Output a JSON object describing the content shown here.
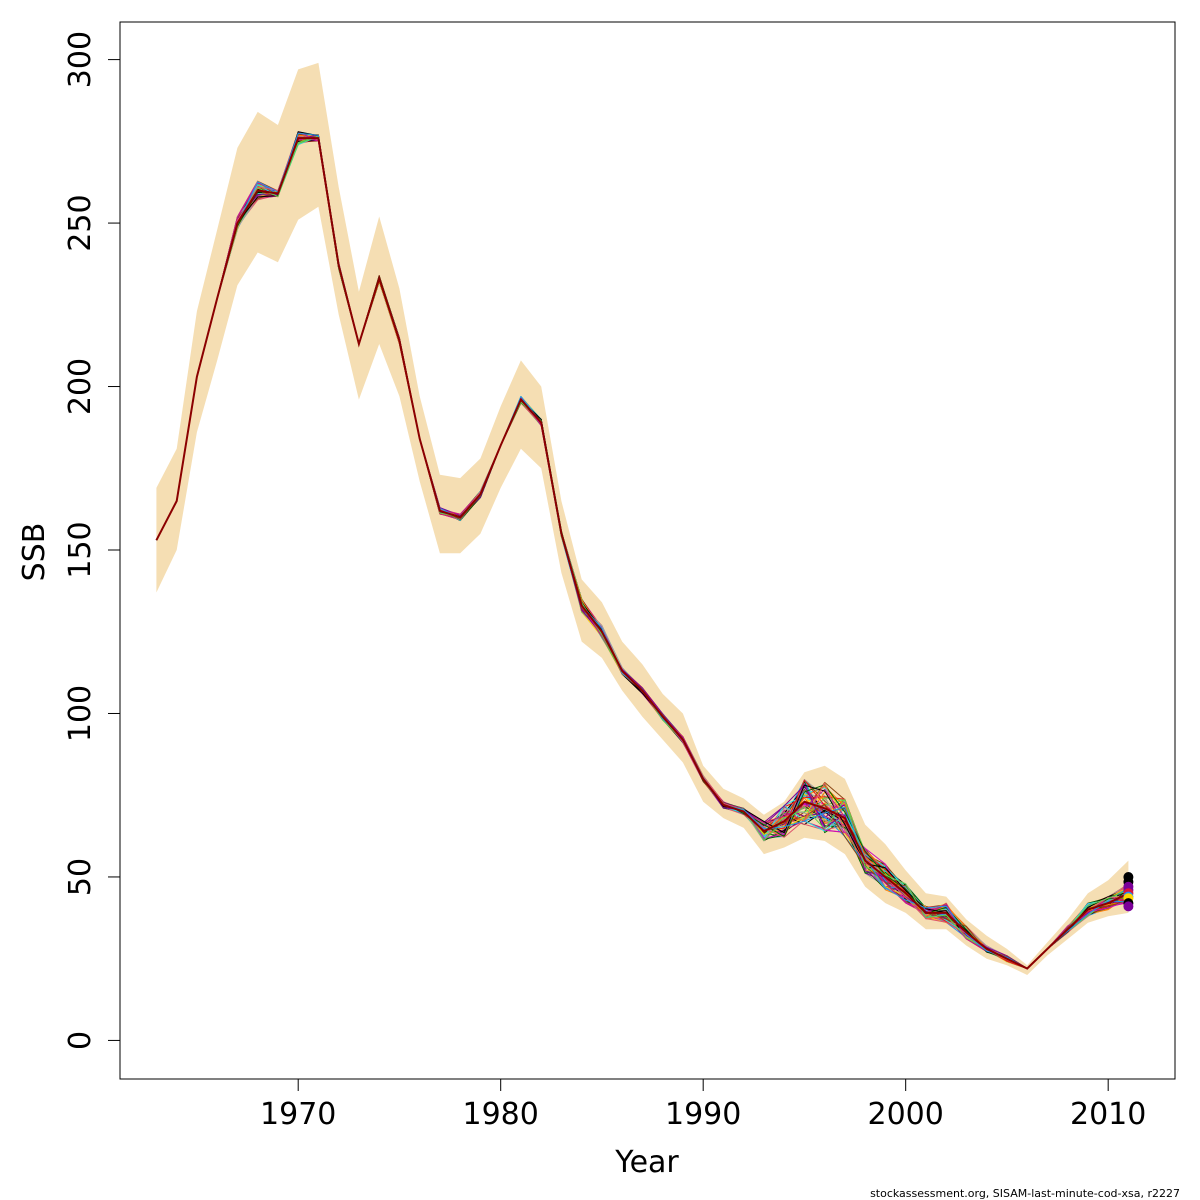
{
  "chart_data": {
    "type": "line",
    "title": "",
    "xlabel": "Year",
    "ylabel": "SSB",
    "xlim": [
      1961.2,
      2013.3
    ],
    "ylim": [
      -11.8,
      311.5
    ],
    "xticks": [
      1970,
      1980,
      1990,
      2000,
      2010
    ],
    "yticks": [
      0,
      50,
      100,
      150,
      200,
      250,
      300
    ],
    "grid": false,
    "legend": "none",
    "band_color": "#F5DEB3",
    "x": [
      1963,
      1964,
      1965,
      1966,
      1967,
      1968,
      1969,
      1970,
      1971,
      1972,
      1973,
      1974,
      1975,
      1976,
      1977,
      1978,
      1979,
      1980,
      1981,
      1982,
      1983,
      1984,
      1985,
      1986,
      1987,
      1988,
      1989,
      1990,
      1991,
      1992,
      1993,
      1994,
      1995,
      1996,
      1997,
      1998,
      1999,
      2000,
      2001,
      2002,
      2003,
      2004,
      2005,
      2006,
      2007,
      2008,
      2009,
      2010,
      2011
    ],
    "estimate": [
      153,
      165,
      203,
      227,
      250,
      260,
      259,
      276,
      276,
      237,
      213,
      233,
      214,
      184,
      162,
      160,
      167,
      182,
      196,
      189,
      155,
      133,
      125,
      113,
      107,
      99,
      92,
      80,
      72,
      70,
      64,
      67,
      73,
      71,
      68,
      55,
      50,
      45,
      39,
      39,
      33,
      28,
      25,
      22,
      28,
      34,
      40,
      42,
      45
    ],
    "band_upper": [
      169,
      181,
      223,
      248,
      273,
      284,
      280,
      297,
      299,
      261,
      229,
      252,
      230,
      197,
      173,
      172,
      178,
      194,
      208,
      200,
      165,
      141,
      134,
      122,
      115,
      106,
      100,
      84,
      77,
      74,
      69,
      73,
      82,
      84,
      80,
      66,
      60,
      52,
      45,
      44,
      37,
      32,
      28,
      23,
      30,
      37,
      45,
      49,
      55
    ],
    "band_lower": [
      137,
      150,
      186,
      208,
      231,
      241,
      238,
      251,
      255,
      222,
      196,
      213,
      197,
      171,
      149,
      149,
      155,
      169,
      181,
      175,
      143,
      122,
      117,
      107,
      99,
      92,
      85,
      73,
      68,
      65,
      57,
      59,
      62,
      61,
      57,
      47,
      42,
      39,
      34,
      34,
      29,
      25,
      23,
      20,
      26,
      31,
      36,
      38,
      39
    ],
    "retro_spread": [
      0,
      0,
      0,
      0,
      2,
      3,
      1,
      2,
      1,
      1,
      0,
      1,
      1,
      0,
      1,
      1,
      1,
      0,
      1,
      1,
      1,
      2,
      2,
      1,
      1,
      1,
      1,
      1,
      1,
      1,
      3,
      5,
      7,
      8,
      6,
      4,
      4,
      3,
      2,
      3,
      2,
      1,
      1,
      0,
      0,
      1,
      2,
      2,
      3
    ],
    "endpoint_points": [
      {
        "x": 2011,
        "y": 50,
        "color": "#000000"
      },
      {
        "x": 2011,
        "y": 48.5,
        "color": "#000000"
      },
      {
        "x": 2011,
        "y": 47,
        "color": "#7B0099"
      },
      {
        "x": 2011,
        "y": 46,
        "color": "#7B0099"
      },
      {
        "x": 2011,
        "y": 45,
        "color": "#DC143C"
      },
      {
        "x": 2011,
        "y": 44,
        "color": "#1E90FF"
      },
      {
        "x": 2011,
        "y": 43.5,
        "color": "#FFD700"
      },
      {
        "x": 2011,
        "y": 42,
        "color": "#000000"
      },
      {
        "x": 2011,
        "y": 41,
        "color": "#7B0099"
      }
    ],
    "line_colors": [
      "#000000",
      "#DF536B",
      "#61D04F",
      "#2297E6",
      "#28E2E5",
      "#CD0BBC",
      "#F5C710",
      "#9E9E9E",
      "#E41A1C",
      "#FF7F00",
      "#7B0099",
      "#006400",
      "#8B4513",
      "#C71585"
    ],
    "footnote": "stockassessment.org, SISAM-last-minute-cod-xsa, r2227"
  }
}
